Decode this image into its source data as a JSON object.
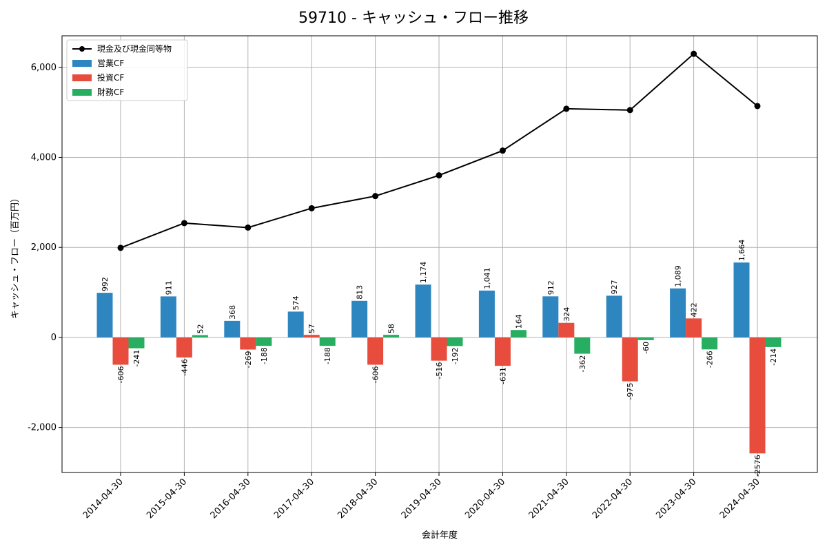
{
  "chart_data": {
    "type": "bar",
    "title": "59710 - キャッシュ・フロー推移",
    "xlabel": "会計年度",
    "ylabel": "キャッシュ・フロー（百万円）",
    "categories": [
      "2014-04-30",
      "2015-04-30",
      "2016-04-30",
      "2017-04-30",
      "2018-04-30",
      "2019-04-30",
      "2020-04-30",
      "2021-04-30",
      "2022-04-30",
      "2023-04-30",
      "2024-04-30"
    ],
    "ylim": [
      -3000,
      6700
    ],
    "yticks": [
      -2000,
      0,
      2000,
      4000,
      6000
    ],
    "ytick_labels": [
      "-2,000",
      "0",
      "2,000",
      "4,000",
      "6,000"
    ],
    "grid": true,
    "legend_position": "top-left",
    "series": [
      {
        "name": "現金及び現金同等物",
        "kind": "line",
        "color": "#000000",
        "values": [
          1990,
          2540,
          2440,
          2870,
          3140,
          3600,
          4150,
          5080,
          5050,
          6300,
          5140
        ]
      },
      {
        "name": "営業CF",
        "kind": "bar",
        "color": "#2e86c1",
        "values": [
          992,
          911,
          368,
          574,
          813,
          1174,
          1041,
          912,
          927,
          1089,
          1664
        ],
        "labels": [
          "992",
          "911",
          "368",
          "574",
          "813",
          "1,174",
          "1,041",
          "912",
          "927",
          "1,089",
          "1,664"
        ]
      },
      {
        "name": "投資CF",
        "kind": "bar",
        "color": "#e74c3c",
        "values": [
          -606,
          -446,
          -269,
          57,
          -606,
          -516,
          -631,
          324,
          -975,
          422,
          -2576
        ],
        "labels": [
          "-606",
          "-446",
          "-269",
          "57",
          "-606",
          "-516",
          "-631",
          "324",
          "-975",
          "422",
          "-2576"
        ]
      },
      {
        "name": "財務CF",
        "kind": "bar",
        "color": "#27ae60",
        "values": [
          -241,
          52,
          -188,
          -188,
          58,
          -192,
          164,
          -362,
          -60,
          -266,
          -214
        ],
        "labels": [
          "-241",
          "52",
          "-188",
          "-188",
          "58",
          "-192",
          "164",
          "-362",
          "-60",
          "-266",
          "-214"
        ]
      }
    ]
  }
}
